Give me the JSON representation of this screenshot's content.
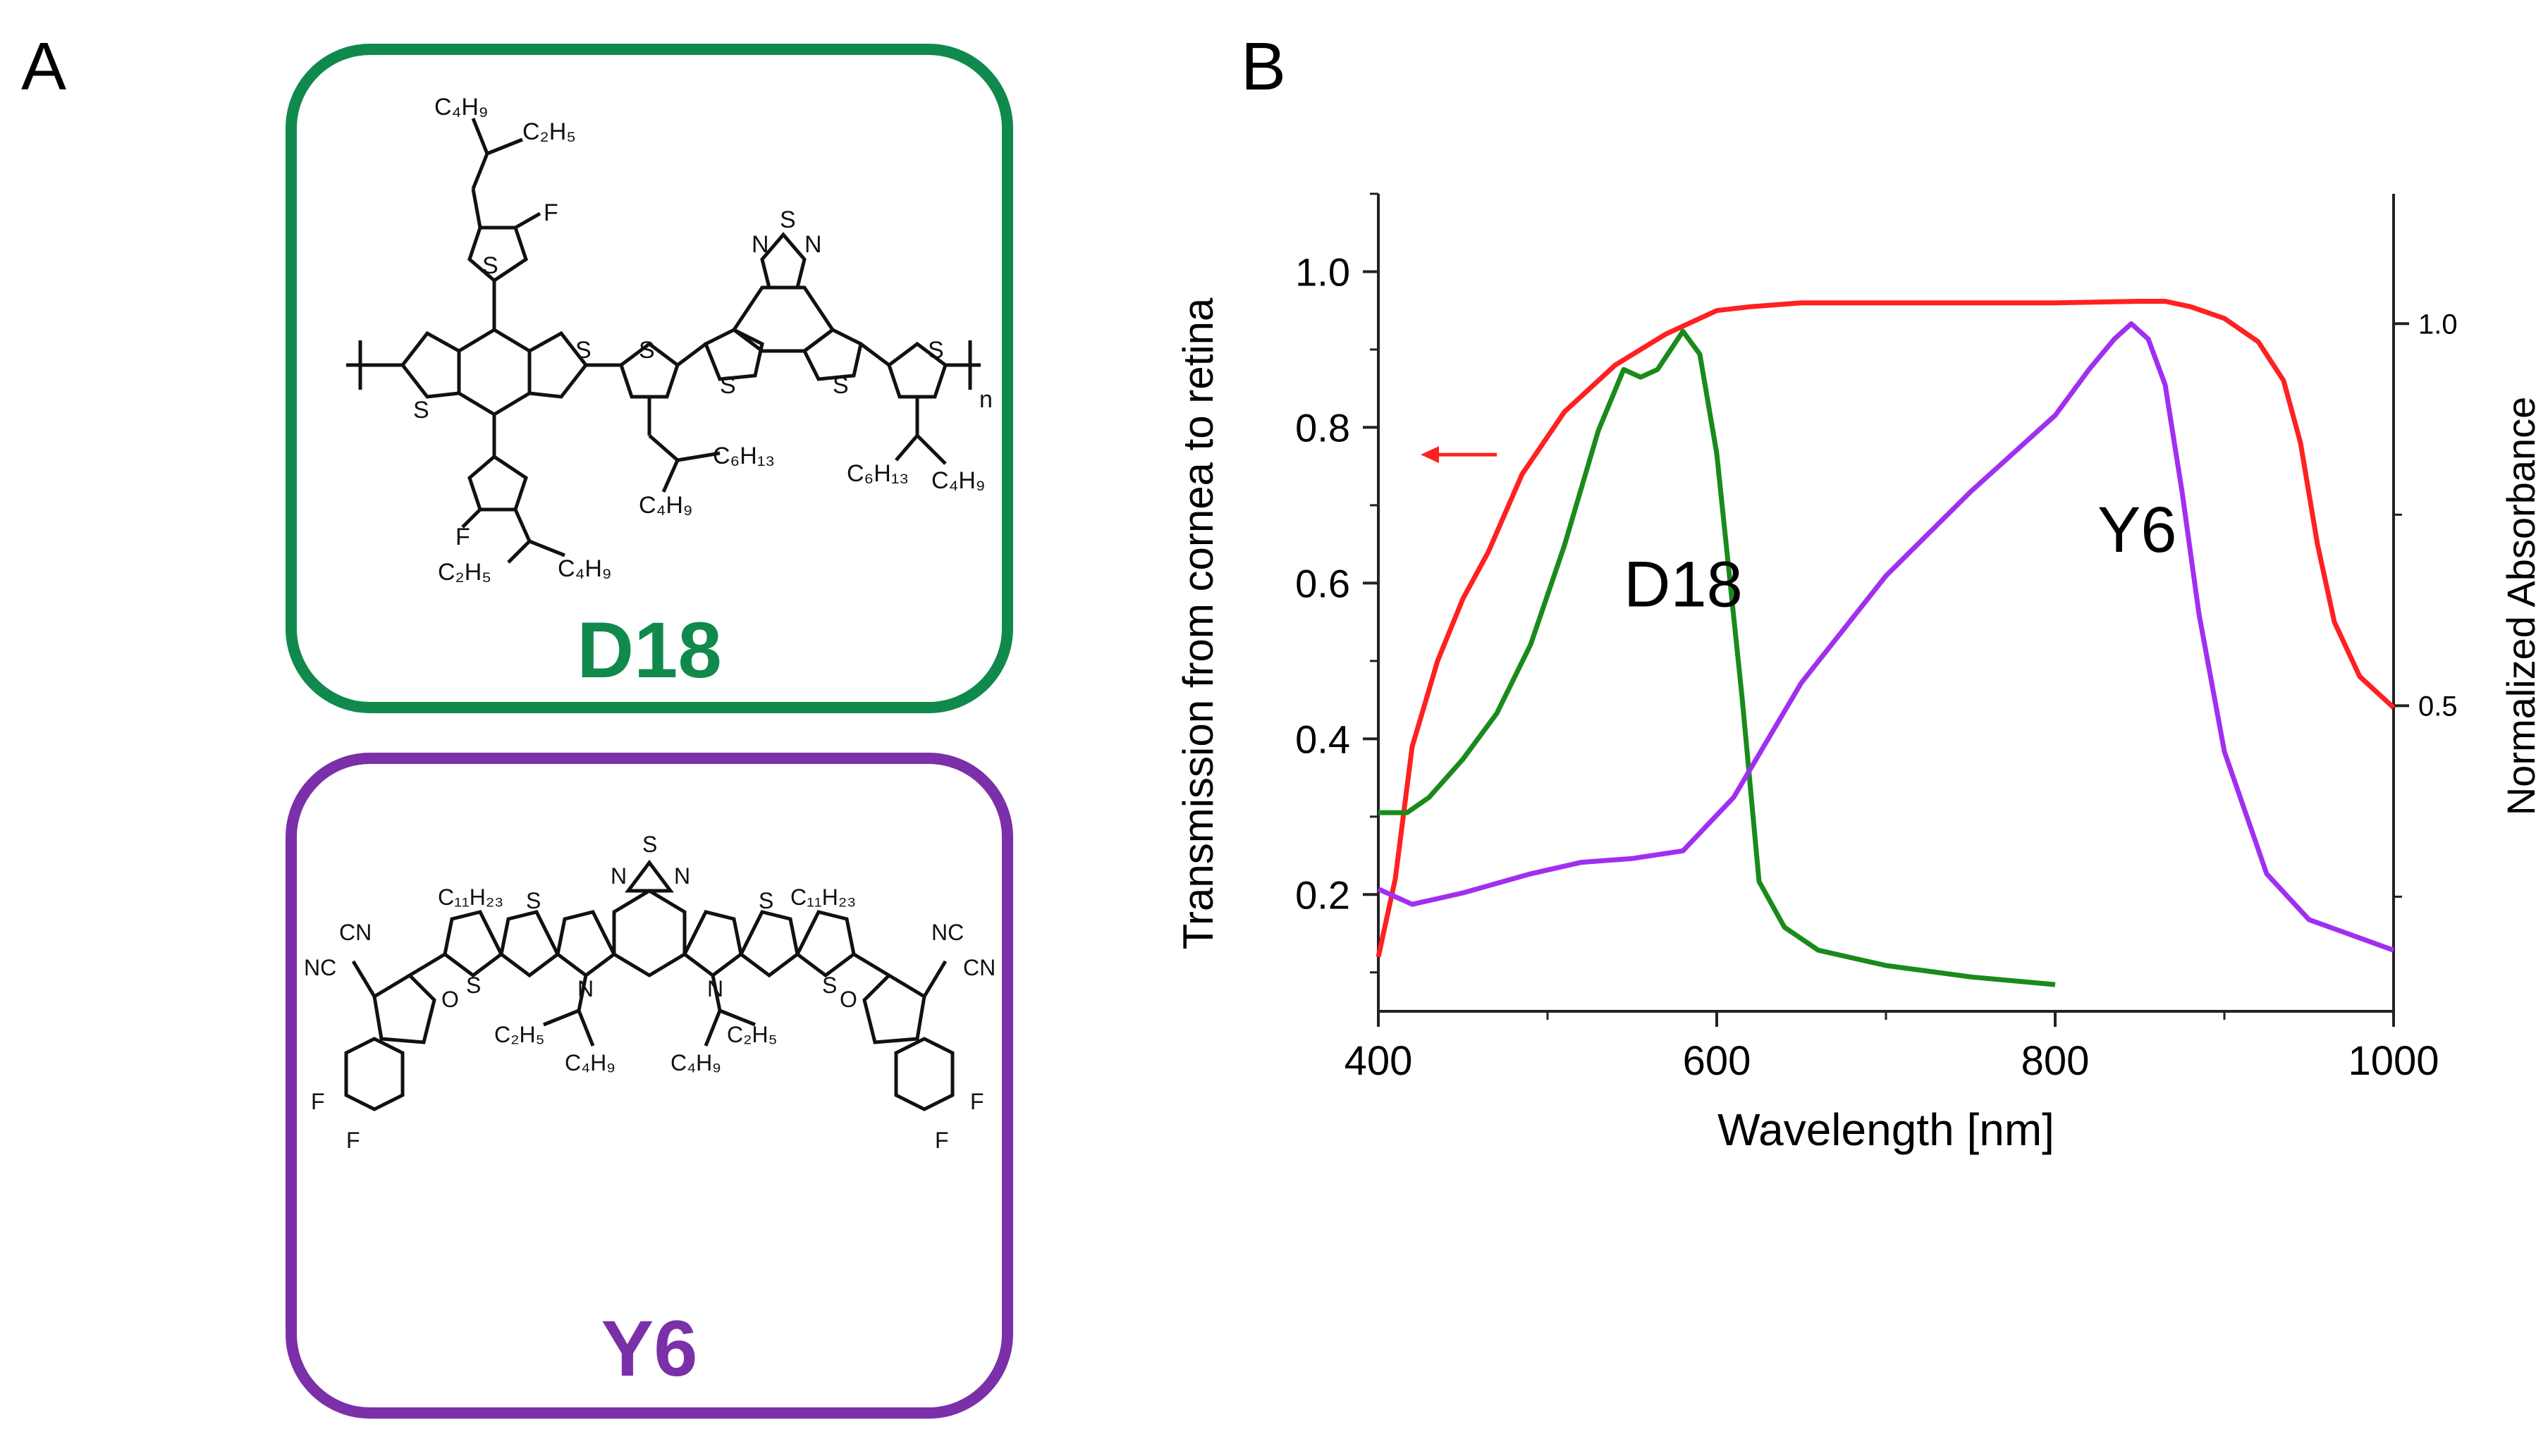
{
  "panels": {
    "a": "A",
    "b": "B"
  },
  "molecules": {
    "d18": {
      "name": "D18",
      "color": "#0f8a4c",
      "labels": [
        "C4H9",
        "C2H5",
        "F",
        "S",
        "S",
        "S",
        "S",
        "S",
        "S",
        "N",
        "N",
        "S",
        "S",
        "n",
        "C6H13",
        "C4H9",
        "C6H13",
        "C4H9",
        "F",
        "C2H5",
        "C4H9"
      ]
    },
    "y6": {
      "name": "Y6",
      "color": "#7b2fa9",
      "labels": [
        "S",
        "N",
        "N",
        "C11H23",
        "C11H23",
        "S",
        "S",
        "S",
        "S",
        "N",
        "N",
        "CN",
        "NC",
        "CN",
        "NC",
        "O",
        "O",
        "C2H5",
        "C2H5",
        "C4H9",
        "C4H9",
        "F",
        "F",
        "F",
        "F"
      ]
    }
  },
  "chart_data": {
    "type": "line",
    "xlabel": "Wavelength [nm]",
    "ylabel": "Transmission from cornea to retina",
    "ylabel_right": "Normalized Absorbance",
    "xlim": [
      400,
      1000
    ],
    "ylim": [
      0.05,
      1.1
    ],
    "ylim_right": [
      0.1,
      1.17
    ],
    "x_ticks": [
      400,
      600,
      800,
      1000
    ],
    "y_ticks": [
      0.2,
      0.4,
      0.6,
      0.8,
      1.0
    ],
    "y_ticks_right": [
      0.5,
      1.0
    ],
    "series": [
      {
        "name": "Transmission",
        "axis": "left",
        "color": "#ff2020",
        "x": [
          400,
          410,
          420,
          435,
          450,
          465,
          485,
          510,
          540,
          570,
          600,
          620,
          650,
          700,
          750,
          800,
          850,
          865,
          880,
          900,
          920,
          935,
          945,
          955,
          965,
          980,
          1000
        ],
        "y": [
          0.12,
          0.22,
          0.39,
          0.5,
          0.58,
          0.64,
          0.74,
          0.82,
          0.88,
          0.92,
          0.95,
          0.955,
          0.96,
          0.96,
          0.96,
          0.96,
          0.962,
          0.962,
          0.955,
          0.94,
          0.91,
          0.86,
          0.78,
          0.65,
          0.55,
          0.48,
          0.44
        ]
      },
      {
        "name": "D18",
        "axis": "right",
        "color": "#1a8a1a",
        "x": [
          400,
          417,
          430,
          450,
          470,
          490,
          510,
          530,
          545,
          555,
          565,
          580,
          590,
          600,
          615,
          625,
          640,
          660,
          700,
          750,
          800
        ],
        "y": [
          0.36,
          0.36,
          0.38,
          0.43,
          0.49,
          0.58,
          0.71,
          0.86,
          0.94,
          0.93,
          0.94,
          0.99,
          0.96,
          0.83,
          0.51,
          0.27,
          0.21,
          0.18,
          0.16,
          0.145,
          0.135
        ]
      },
      {
        "name": "Y6",
        "axis": "right",
        "color": "#a02ff0",
        "x": [
          400,
          420,
          450,
          490,
          520,
          550,
          580,
          610,
          650,
          700,
          750,
          800,
          820,
          835,
          845,
          855,
          865,
          875,
          885,
          900,
          925,
          950,
          1000
        ],
        "y": [
          0.26,
          0.24,
          0.255,
          0.28,
          0.295,
          0.3,
          0.31,
          0.38,
          0.53,
          0.67,
          0.78,
          0.88,
          0.94,
          0.98,
          1.0,
          0.98,
          0.92,
          0.78,
          0.62,
          0.44,
          0.28,
          0.22,
          0.18
        ]
      }
    ],
    "annotations": [
      {
        "text": "D18",
        "x": 545,
        "y": 0.57
      },
      {
        "text": "Y6",
        "x": 825,
        "y": 0.64
      }
    ],
    "arrow": {
      "color": "#ff2020",
      "x_from": 470,
      "x_to": 425,
      "y": 0.765
    }
  }
}
